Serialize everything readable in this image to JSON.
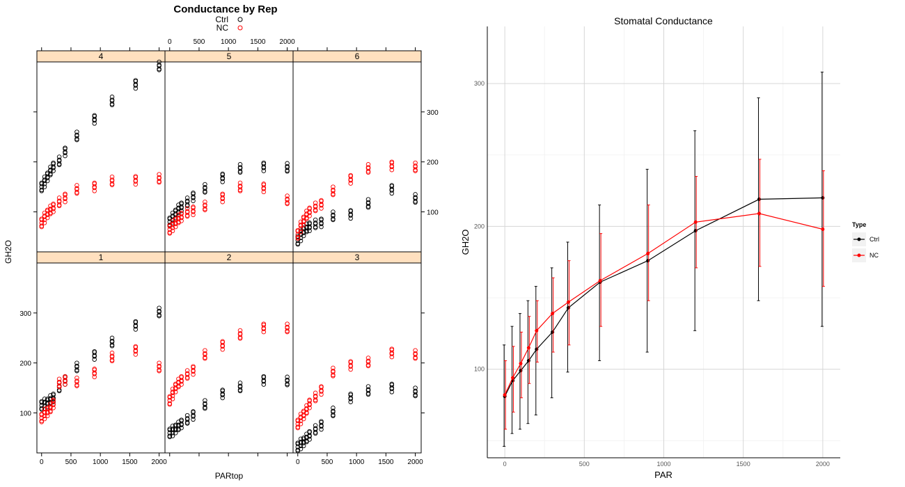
{
  "chart_data": [
    {
      "type": "scatter",
      "title": "Conductance by Rep",
      "xlabel": "PARtop",
      "ylabel": "GH2O",
      "xlim": [
        -80,
        2100
      ],
      "ylim": [
        20,
        400
      ],
      "x_ticks": [
        0,
        500,
        1000,
        1500,
        2000
      ],
      "y_ticks": [
        100,
        200,
        300
      ],
      "legend": {
        "position": "top-center",
        "entries": [
          {
            "name": "Ctrl",
            "color": "#000000"
          },
          {
            "name": "NC",
            "color": "#ff0000"
          }
        ]
      },
      "strip_color": "#ffe0bf",
      "panels": [
        {
          "label": "4",
          "Ctrl": {
            "x": [
              0,
              50,
              100,
              150,
              200,
              300,
              400,
              600,
              900,
              1200,
              1600,
              2000
            ],
            "y": [
              150,
              160,
              170,
              180,
              190,
              200,
              220,
              250,
              285,
              320,
              355,
              390
            ]
          },
          "NC": {
            "x": [
              0,
              50,
              100,
              150,
              200,
              300,
              400,
              600,
              900,
              1200,
              1600,
              2000
            ],
            "y": [
              78,
              88,
              96,
              102,
              108,
              118,
              128,
              143,
              150,
              160,
              163,
              165
            ]
          }
        },
        {
          "label": "5",
          "Ctrl": {
            "x": [
              0,
              50,
              100,
              150,
              200,
              300,
              400,
              600,
              900,
              1200,
              1600,
              2000
            ],
            "y": [
              80,
              88,
              96,
              104,
              110,
              118,
              130,
              145,
              168,
              185,
              190,
              187
            ]
          },
          "NC": {
            "x": [
              0,
              50,
              100,
              150,
              200,
              300,
              400,
              600,
              900,
              1200,
              1600,
              2000
            ],
            "y": [
              65,
              72,
              78,
              84,
              90,
              97,
              102,
              110,
              128,
              148,
              148,
              122
            ]
          }
        },
        {
          "label": "6",
          "Ctrl": {
            "x": [
              0,
              50,
              100,
              150,
              200,
              300,
              400,
              600,
              900,
              1200,
              1600,
              2000
            ],
            "y": [
              43,
              52,
              60,
              66,
              70,
              74,
              78,
              90,
              95,
              115,
              145,
              125
            ]
          },
          "NC": {
            "x": [
              0,
              50,
              100,
              150,
              200,
              300,
              400,
              600,
              900,
              1200,
              1600,
              2000
            ],
            "y": [
              55,
              70,
              82,
              92,
              100,
              108,
              115,
              140,
              165,
              185,
              192,
              188
            ]
          }
        },
        {
          "label": "1",
          "Ctrl": {
            "x": [
              0,
              50,
              100,
              150,
              200,
              300,
              400,
              600,
              900,
              1200,
              1600,
              2000
            ],
            "y": [
              115,
              118,
              120,
              125,
              130,
              150,
              165,
              190,
              215,
              240,
              275,
              300
            ]
          },
          "NC": {
            "x": [
              0,
              50,
              100,
              150,
              200,
              300,
              400,
              600,
              900,
              1200,
              1600,
              2000
            ],
            "y": [
              90,
              98,
              102,
              108,
              118,
              158,
              165,
              160,
              180,
              210,
              225,
              190
            ]
          }
        },
        {
          "label": "2",
          "Ctrl": {
            "x": [
              0,
              50,
              100,
              150,
              200,
              300,
              400,
              600,
              900,
              1200,
              1600,
              2000
            ],
            "y": [
              60,
              64,
              68,
              72,
              78,
              85,
              95,
              115,
              138,
              150,
              165,
              162
            ]
          },
          "NC": {
            "x": [
              0,
              50,
              100,
              150,
              200,
              300,
              400,
              600,
              900,
              1200,
              1600,
              2000
            ],
            "y": [
              125,
              138,
              150,
              158,
              165,
              175,
              185,
              215,
              235,
              255,
              270,
              268
            ]
          }
        },
        {
          "label": "3",
          "Ctrl": {
            "x": [
              0,
              50,
              100,
              150,
              200,
              300,
              400,
              600,
              900,
              1200,
              1600,
              2000
            ],
            "y": [
              32,
              38,
              42,
              48,
              55,
              65,
              75,
              100,
              130,
              143,
              150,
              140
            ]
          },
          "NC": {
            "x": [
              0,
              50,
              100,
              150,
              200,
              300,
              400,
              600,
              900,
              1200,
              1600,
              2000
            ],
            "y": [
              78,
              88,
              96,
              105,
              118,
              130,
              145,
              180,
              195,
              200,
              220,
              215
            ]
          }
        }
      ]
    },
    {
      "type": "line",
      "title": "Stomatal Conductance",
      "xlabel": "PAR",
      "ylabel": "GH2O",
      "xlim": [
        -110,
        2110
      ],
      "ylim": [
        38,
        340
      ],
      "x_ticks": [
        0,
        500,
        1000,
        1500,
        2000
      ],
      "y_ticks": [
        100,
        200,
        300
      ],
      "grid": true,
      "legend": {
        "title": "Type",
        "position": "right"
      },
      "series": [
        {
          "name": "Ctrl",
          "color": "#000000",
          "x": [
            0,
            50,
            100,
            150,
            200,
            300,
            400,
            600,
            900,
            1200,
            1600,
            2000
          ],
          "y": [
            81,
            92,
            99,
            106,
            114,
            126,
            143,
            161,
            176,
            197,
            219,
            220
          ],
          "err_low": [
            46,
            55,
            58,
            62,
            68,
            80,
            98,
            106,
            112,
            127,
            148,
            130
          ],
          "err_high": [
            117,
            130,
            139,
            148,
            158,
            171,
            189,
            215,
            240,
            267,
            290,
            308
          ]
        },
        {
          "name": "NC",
          "color": "#ff0000",
          "x": [
            0,
            50,
            100,
            150,
            200,
            300,
            400,
            600,
            900,
            1200,
            1600,
            2000
          ],
          "y": [
            82,
            94,
            104,
            115,
            127,
            139,
            147,
            162,
            181,
            203,
            209,
            198
          ],
          "err_low": [
            58,
            70,
            80,
            90,
            105,
            112,
            117,
            130,
            148,
            171,
            172,
            158
          ],
          "err_high": [
            106,
            116,
            126,
            137,
            148,
            164,
            176,
            195,
            215,
            235,
            247,
            239
          ]
        }
      ]
    }
  ]
}
